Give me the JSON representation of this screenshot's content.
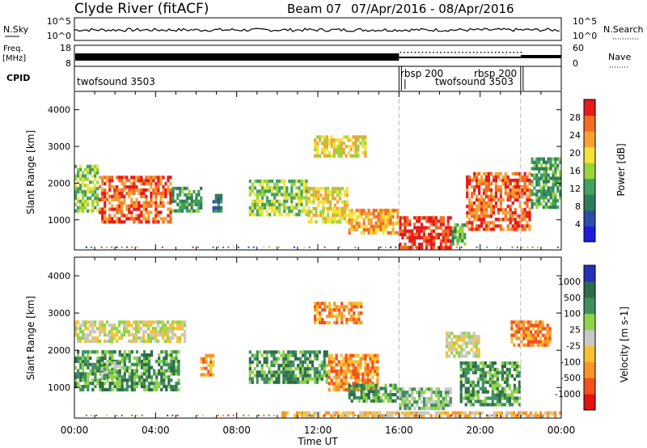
{
  "header": {
    "station": "Clyde River (fitACF)",
    "beam": "Beam 07",
    "date_range": "07/Apr/2016 - 08/Apr/2016"
  },
  "status_panels": {
    "nsky_label": "N.Sky",
    "nsky_ticks": [
      "10^5",
      "10^0"
    ],
    "nsearch_label": "N.Search",
    "freq_label_1": "Freq.",
    "freq_label_2": "[MHz]",
    "freq_ticks": [
      "18",
      "8"
    ],
    "nave_label": "Nave",
    "nave_ticks": [
      "60",
      "0"
    ],
    "cpid_label": "CPID",
    "cpid_entries": [
      "twofsound 3503",
      "rbsp 200",
      "twofsound 3503",
      "rbsp 200"
    ],
    "cpid_switch_hours": [
      16.0,
      22.0
    ]
  },
  "chart_data": [
    {
      "type": "heatmap",
      "name": "power",
      "ylabel": "Slant Range [km]",
      "yticks": [
        1000,
        2000,
        3000,
        4000
      ],
      "ylim": [
        180,
        4500
      ],
      "xlim": [
        0,
        24
      ],
      "xticks": [
        "00:00",
        "04:00",
        "08:00",
        "12:00",
        "16:00",
        "20:00",
        "00:00"
      ],
      "colorbar": {
        "label": "Power [dB]",
        "ticks": [
          "28",
          "24",
          "20",
          "16",
          "12",
          "8",
          "4"
        ],
        "colors": [
          "#1c1cdc",
          "#2c4ea8",
          "#2e7d5a",
          "#43a060",
          "#98d43a",
          "#f2e23a",
          "#f7a033",
          "#f36b24",
          "#e61a1a"
        ]
      },
      "regions": [
        {
          "t0": 0.0,
          "t1": 1.2,
          "r0": 1200,
          "r1": 2500,
          "level": 4
        },
        {
          "t0": 1.2,
          "t1": 4.8,
          "r0": 900,
          "r1": 2200,
          "level": 7
        },
        {
          "t0": 4.8,
          "t1": 6.3,
          "r0": 1200,
          "r1": 1900,
          "level": 3
        },
        {
          "t0": 6.8,
          "t1": 7.3,
          "r0": 1200,
          "r1": 1700,
          "level": 2
        },
        {
          "t0": 8.6,
          "t1": 11.5,
          "r0": 1100,
          "r1": 2100,
          "level": 4
        },
        {
          "t0": 11.5,
          "t1": 13.5,
          "r0": 900,
          "r1": 1900,
          "level": 5
        },
        {
          "t0": 11.8,
          "t1": 14.4,
          "r0": 2700,
          "r1": 3300,
          "level": 5
        },
        {
          "t0": 13.5,
          "t1": 16.0,
          "r0": 600,
          "r1": 1300,
          "level": 6
        },
        {
          "t0": 16.0,
          "t1": 18.6,
          "r0": 200,
          "r1": 1100,
          "level": 8
        },
        {
          "t0": 18.6,
          "t1": 19.3,
          "r0": 300,
          "r1": 900,
          "level": 3
        },
        {
          "t0": 19.3,
          "t1": 22.5,
          "r0": 700,
          "r1": 2300,
          "level": 7
        },
        {
          "t0": 22.5,
          "t1": 24.0,
          "r0": 1300,
          "r1": 2700,
          "level": 3
        }
      ]
    },
    {
      "type": "heatmap",
      "name": "velocity",
      "ylabel": "Slant Range [km]",
      "yticks": [
        1000,
        2000,
        3000,
        4000
      ],
      "ylim": [
        180,
        4500
      ],
      "xlim": [
        0,
        24
      ],
      "xticks": [
        "00:00",
        "04:00",
        "08:00",
        "12:00",
        "16:00",
        "20:00",
        "00:00"
      ],
      "xlabel": "Time UT",
      "colorbar": {
        "label": "Velocity [m s-1]",
        "ticks": [
          "1000",
          "500",
          "100",
          "25",
          "-25",
          "-100",
          "-500",
          "-1000"
        ],
        "colors": [
          "#e01313",
          "#f5501e",
          "#f7942a",
          "#f6c233",
          "#c8c8c8",
          "#8ed448",
          "#3f8f60",
          "#2d6b49",
          "#2530b8"
        ]
      },
      "regions": [
        {
          "t0": 0.0,
          "t1": 5.5,
          "r0": 2200,
          "r1": 2800,
          "level": 4
        },
        {
          "t0": 0.0,
          "t1": 5.2,
          "r0": 900,
          "r1": 2000,
          "level": 6
        },
        {
          "t0": 1.3,
          "t1": 2.3,
          "r0": 1200,
          "r1": 1700,
          "level": 5
        },
        {
          "t0": 6.2,
          "t1": 6.9,
          "r0": 1300,
          "r1": 1900,
          "level": 2
        },
        {
          "t0": 8.6,
          "t1": 12.5,
          "r0": 1100,
          "r1": 2000,
          "level": 6
        },
        {
          "t0": 12.5,
          "t1": 15.0,
          "r0": 900,
          "r1": 1900,
          "level": 2
        },
        {
          "t0": 11.8,
          "t1": 14.2,
          "r0": 2700,
          "r1": 3300,
          "level": 2
        },
        {
          "t0": 13.5,
          "t1": 16.0,
          "r0": 600,
          "r1": 1100,
          "level": 6
        },
        {
          "t0": 16.0,
          "t1": 18.6,
          "r0": 400,
          "r1": 1000,
          "level": 5
        },
        {
          "t0": 18.3,
          "t1": 20.0,
          "r0": 1800,
          "r1": 2500,
          "level": 4
        },
        {
          "t0": 19.0,
          "t1": 22.0,
          "r0": 500,
          "r1": 1700,
          "level": 6
        },
        {
          "t0": 21.5,
          "t1": 23.5,
          "r0": 2100,
          "r1": 2800,
          "level": 2
        },
        {
          "t0": 10.2,
          "t1": 24.0,
          "r0": 200,
          "r1": 350,
          "level": 3
        }
      ]
    }
  ]
}
